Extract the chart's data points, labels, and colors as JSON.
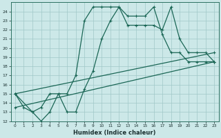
{
  "xlabel": "Humidex (Indice chaleur)",
  "bg_color": "#cce8e8",
  "grid_color": "#a0c8c8",
  "line_color": "#1a6655",
  "xlim": [
    -0.5,
    23.5
  ],
  "ylim": [
    12,
    25
  ],
  "yticks": [
    12,
    13,
    14,
    15,
    16,
    17,
    18,
    19,
    20,
    21,
    22,
    23,
    24
  ],
  "xticks": [
    0,
    1,
    2,
    3,
    4,
    5,
    6,
    7,
    8,
    9,
    10,
    11,
    12,
    13,
    14,
    15,
    16,
    17,
    18,
    19,
    20,
    21,
    22,
    23
  ],
  "curve1_x": [
    0,
    1,
    2,
    3,
    4,
    5,
    6,
    7,
    8,
    9,
    10,
    11,
    12,
    13,
    14,
    15,
    16,
    17,
    18,
    19,
    20,
    21,
    22,
    23
  ],
  "curve1_y": [
    15.0,
    13.5,
    13.0,
    12.0,
    13.0,
    15.0,
    15.0,
    17.0,
    23.0,
    24.5,
    24.5,
    24.5,
    24.5,
    22.5,
    22.5,
    22.5,
    22.5,
    22.0,
    24.5,
    21.0,
    19.5,
    19.5,
    19.5,
    18.5
  ],
  "curve2_x": [
    0,
    2,
    3,
    4,
    5,
    6,
    7,
    8,
    9,
    10,
    11,
    12,
    13,
    14,
    15,
    16,
    17,
    18,
    19,
    20,
    21,
    22,
    23
  ],
  "curve2_y": [
    15.0,
    13.0,
    13.5,
    15.0,
    15.0,
    13.0,
    13.0,
    15.5,
    17.5,
    21.0,
    23.0,
    24.5,
    23.5,
    23.5,
    23.5,
    24.5,
    21.5,
    19.5,
    19.5,
    18.5,
    18.5,
    18.5,
    18.5
  ],
  "line3_x": [
    0,
    23
  ],
  "line3_y": [
    15.0,
    19.5
  ],
  "line4_x": [
    0,
    23
  ],
  "line4_y": [
    13.5,
    18.5
  ]
}
